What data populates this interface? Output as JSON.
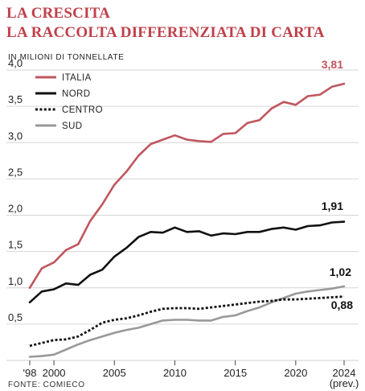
{
  "title_line1": "LA CRESCITA",
  "title_line2": "LA RACCOLTA DIFFERENZIATA DI CARTA",
  "source": "FONTE: COMIECO",
  "chart_data": {
    "type": "line",
    "ylabel": "IN MILIONI DI TONNELLATE",
    "ylim": [
      0,
      4.0
    ],
    "xlim": [
      1998,
      2024
    ],
    "yticks": [
      "4,0",
      "3,5",
      "3,0",
      "2,5",
      "2,0",
      "1,5",
      "1,0",
      "0,5"
    ],
    "ytick_values": [
      4.0,
      3.5,
      3.0,
      2.5,
      2.0,
      1.5,
      1.0,
      0.5
    ],
    "xticks": [
      "'98",
      "2000",
      "2005",
      "2010",
      "2015",
      "2020",
      "2024"
    ],
    "xtick_values": [
      1998,
      2000,
      2005,
      2010,
      2015,
      2020,
      2024
    ],
    "x_note": "(prev.)",
    "grid": "horizontal",
    "legend_position": "top-left",
    "x": [
      1998,
      1999,
      2000,
      2001,
      2002,
      2003,
      2004,
      2005,
      2006,
      2007,
      2008,
      2009,
      2010,
      2011,
      2012,
      2013,
      2014,
      2015,
      2016,
      2017,
      2018,
      2019,
      2020,
      2021,
      2022,
      2023,
      2024
    ],
    "series": [
      {
        "name": "ITALIA",
        "color": "#c0565e",
        "dash": "solid",
        "values": [
          1.0,
          1.27,
          1.35,
          1.52,
          1.6,
          1.92,
          2.15,
          2.42,
          2.6,
          2.82,
          2.98,
          3.04,
          3.1,
          3.04,
          3.02,
          3.01,
          3.12,
          3.13,
          3.27,
          3.31,
          3.47,
          3.56,
          3.52,
          3.64,
          3.66,
          3.77,
          3.81
        ],
        "end_label": "3,81"
      },
      {
        "name": "NORD",
        "color": "#111111",
        "dash": "solid",
        "values": [
          0.8,
          0.95,
          0.98,
          1.06,
          1.04,
          1.18,
          1.25,
          1.43,
          1.55,
          1.7,
          1.77,
          1.76,
          1.83,
          1.77,
          1.78,
          1.72,
          1.75,
          1.74,
          1.77,
          1.77,
          1.81,
          1.83,
          1.8,
          1.85,
          1.86,
          1.9,
          1.91
        ],
        "end_label": "1,91"
      },
      {
        "name": "CENTRO",
        "color": "#111111",
        "dash": "dotted",
        "values": [
          0.2,
          0.24,
          0.28,
          0.29,
          0.33,
          0.42,
          0.52,
          0.56,
          0.58,
          0.62,
          0.67,
          0.71,
          0.72,
          0.72,
          0.71,
          0.73,
          0.75,
          0.77,
          0.79,
          0.81,
          0.82,
          0.84,
          0.84,
          0.85,
          0.86,
          0.87,
          0.88
        ],
        "end_label": "0,88"
      },
      {
        "name": "SUD",
        "color": "#999999",
        "dash": "solid",
        "values": [
          0.05,
          0.06,
          0.08,
          0.15,
          0.22,
          0.28,
          0.33,
          0.38,
          0.42,
          0.45,
          0.5,
          0.55,
          0.56,
          0.56,
          0.55,
          0.55,
          0.6,
          0.62,
          0.68,
          0.73,
          0.8,
          0.86,
          0.92,
          0.95,
          0.97,
          0.99,
          1.02
        ],
        "end_label": "1,02"
      }
    ]
  }
}
